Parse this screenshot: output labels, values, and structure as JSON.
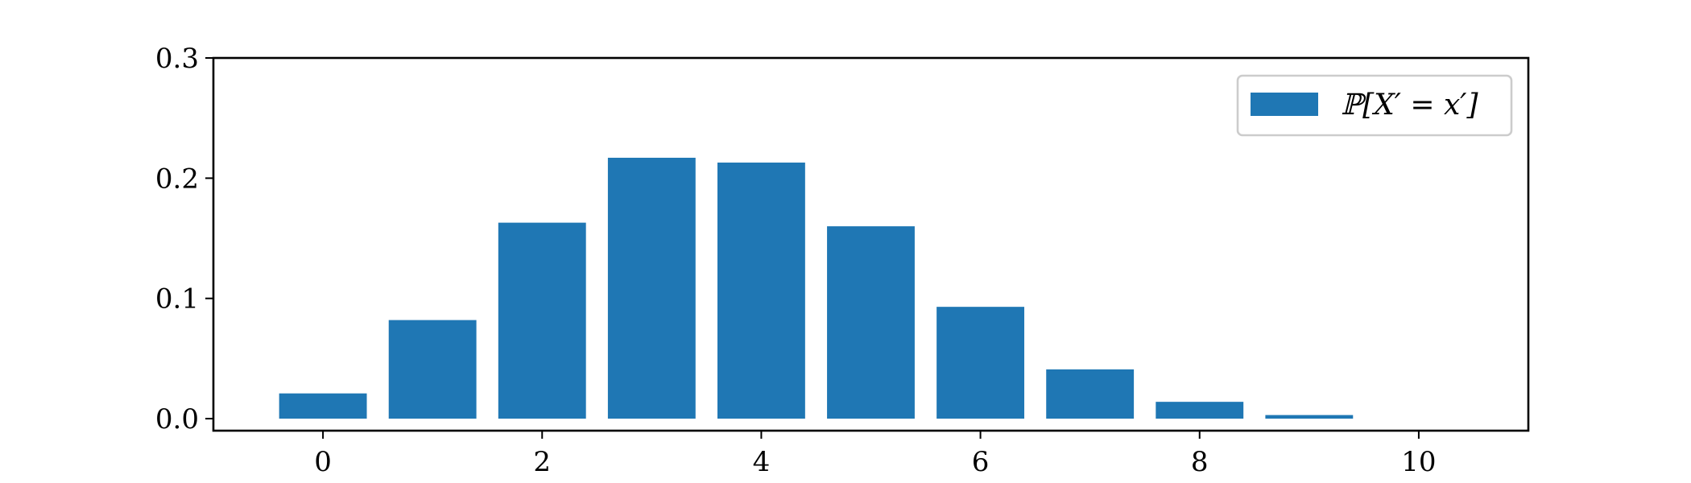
{
  "chart_data": {
    "type": "bar",
    "title": "",
    "xlabel": "",
    "ylabel": "",
    "x": [
      0,
      1,
      2,
      3,
      4,
      5,
      6,
      7,
      8,
      9,
      10
    ],
    "series": [
      {
        "name": "ℙ[X′ = x′]",
        "values": [
          0.021,
          0.082,
          0.163,
          0.217,
          0.213,
          0.16,
          0.093,
          0.041,
          0.014,
          0.003,
          0.0
        ],
        "color": "#1f77b4"
      }
    ],
    "xlim": [
      -1,
      11
    ],
    "ylim": [
      -0.01,
      0.3
    ],
    "xticks": [
      0,
      2,
      4,
      6,
      8,
      10
    ],
    "xtick_labels": [
      "0",
      "2",
      "4",
      "6",
      "8",
      "10"
    ],
    "yticks": [
      0.0,
      0.1,
      0.2,
      0.3
    ],
    "ytick_labels": [
      "0.0",
      "0.1",
      "0.2",
      "0.3"
    ],
    "grid": false,
    "legend_position": "upper-right"
  }
}
